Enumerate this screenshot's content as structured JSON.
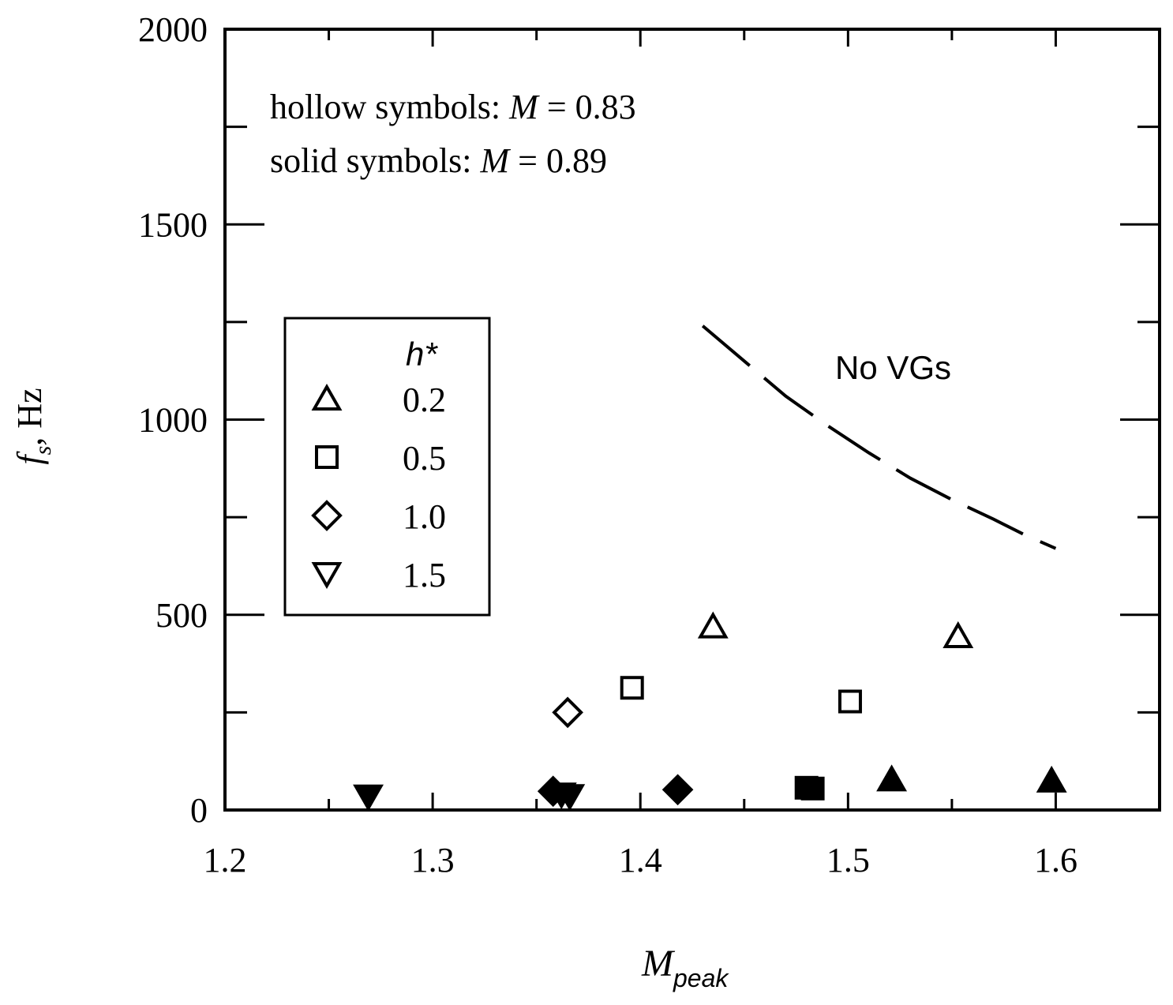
{
  "chart_data": {
    "type": "scatter",
    "xlabel": {
      "main": "M",
      "sub": "peak"
    },
    "ylabel": {
      "main": "f",
      "sub": "s",
      "rest": ", Hz"
    },
    "xlim": [
      1.2,
      1.65
    ],
    "ylim": [
      0,
      2000
    ],
    "x_ticks": [
      "1.2",
      "1.3",
      "1.4",
      "1.5",
      "1.6"
    ],
    "y_ticks": [
      "0",
      "500",
      "1000",
      "1500",
      "2000"
    ],
    "grid": false,
    "annotations": {
      "hollow_prefix": "hollow symbols: ",
      "hollow_var": "M",
      "hollow_value": " = 0.83",
      "solid_prefix": "solid symbols: ",
      "solid_var": "M",
      "solid_value": " = 0.89",
      "no_vgs": "No VGs"
    },
    "legend": {
      "title": "h*",
      "placement": "left-middle",
      "entries": [
        {
          "symbol": "triangle-up",
          "label": "0.2"
        },
        {
          "symbol": "square",
          "label": "0.5"
        },
        {
          "symbol": "diamond",
          "label": "1.0"
        },
        {
          "symbol": "triangle-down",
          "label": "1.5"
        }
      ]
    },
    "series": [
      {
        "symbol": "triangle-up",
        "fill": "hollow",
        "points": [
          [
            1.435,
            470
          ],
          [
            1.553,
            445
          ]
        ]
      },
      {
        "symbol": "square",
        "fill": "hollow",
        "points": [
          [
            1.396,
            313
          ],
          [
            1.501,
            278
          ]
        ]
      },
      {
        "symbol": "diamond",
        "fill": "hollow",
        "points": [
          [
            1.365,
            250
          ]
        ]
      },
      {
        "symbol": "triangle-up",
        "fill": "solid",
        "points": [
          [
            1.521,
            78
          ],
          [
            1.598,
            75
          ]
        ]
      },
      {
        "symbol": "square",
        "fill": "solid",
        "points": [
          [
            1.48,
            57
          ],
          [
            1.483,
            55
          ]
        ]
      },
      {
        "symbol": "diamond",
        "fill": "solid",
        "points": [
          [
            1.358,
            48
          ],
          [
            1.418,
            52
          ]
        ]
      },
      {
        "symbol": "triangle-down",
        "fill": "solid",
        "points": [
          [
            1.269,
            35
          ],
          [
            1.362,
            40
          ],
          [
            1.366,
            36
          ]
        ]
      }
    ],
    "curve": {
      "style": "dashed",
      "points": [
        [
          1.43,
          1240
        ],
        [
          1.45,
          1150
        ],
        [
          1.47,
          1060
        ],
        [
          1.49,
          985
        ],
        [
          1.51,
          915
        ],
        [
          1.53,
          850
        ],
        [
          1.55,
          795
        ],
        [
          1.57,
          745
        ],
        [
          1.585,
          705
        ],
        [
          1.6,
          670
        ]
      ]
    }
  }
}
